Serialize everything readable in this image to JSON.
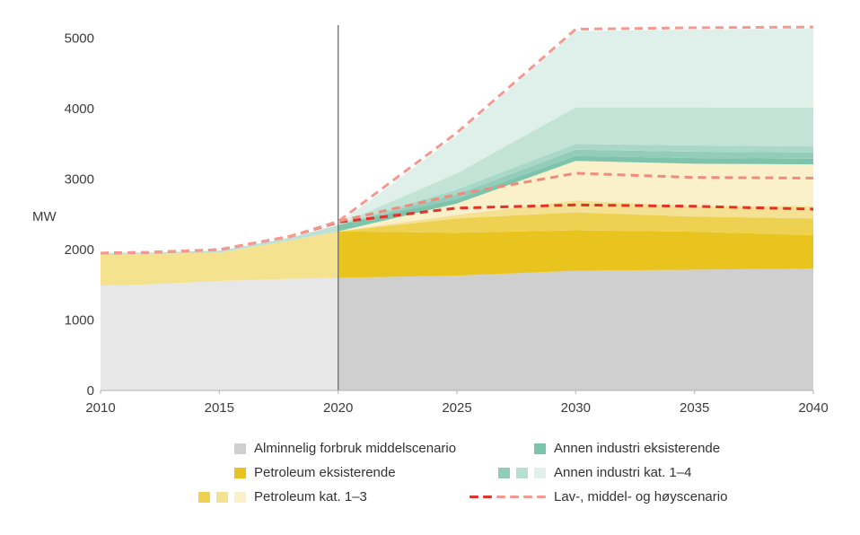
{
  "chart_data": {
    "type": "area",
    "title": "",
    "ylabel": "MW",
    "xlabel": "",
    "axis": {
      "xlim": [
        2010,
        2040
      ],
      "ylim": [
        0,
        5300
      ],
      "grid": false
    },
    "yticks": [
      0,
      1000,
      2000,
      3000,
      4000,
      5000
    ],
    "xticks": [
      2010,
      2015,
      2020,
      2025,
      2030,
      2035,
      2040
    ],
    "divider_year": 2020,
    "historical_overlay": {
      "from": 2010,
      "to": 2020,
      "white_opacity": 0.5
    },
    "x_knots": [
      2010,
      2012,
      2015,
      2018,
      2020,
      2025,
      2030,
      2035,
      2040
    ],
    "bands": [
      {
        "name": "alminnelig-forbruk",
        "label": "Alminnelig forbruk middelscenario",
        "color": "#cfcfcf",
        "top": [
          1490,
          1505,
          1555,
          1585,
          1600,
          1630,
          1700,
          1715,
          1730
        ]
      },
      {
        "name": "petroleum-eksisterende",
        "label": "Petroleum eksisterende",
        "color": "#e9c41f",
        "top": [
          1930,
          1940,
          1955,
          2130,
          2260,
          2240,
          2275,
          2255,
          2205
        ]
      },
      {
        "name": "petroleum-kat-1",
        "label": "Petroleum kat. 1",
        "color": "#efd152",
        "top": [
          1930,
          1940,
          1955,
          2130,
          2260,
          2445,
          2530,
          2470,
          2445
        ]
      },
      {
        "name": "petroleum-kat-2",
        "label": "Petroleum kat. 2",
        "color": "#f4e193",
        "top": [
          1930,
          1940,
          1955,
          2130,
          2260,
          2495,
          2700,
          2615,
          2620
        ]
      },
      {
        "name": "petroleum-kat-3",
        "label": "Petroleum kat. 3",
        "color": "#faf0c9",
        "top": [
          1930,
          1940,
          1955,
          2130,
          2260,
          2655,
          3260,
          3220,
          3210
        ]
      },
      {
        "name": "annen-industri-eksisterende",
        "label": "Annen industri eksisterende",
        "color": "#7ec3ab",
        "top": [
          1950,
          1960,
          1985,
          2170,
          2350,
          2720,
          3330,
          3300,
          3290
        ]
      },
      {
        "name": "annen-industri-kat-1",
        "label": "Annen industri kat. 1",
        "color": "#93ccb9",
        "top": [
          1950,
          1960,
          1985,
          2170,
          2350,
          2785,
          3420,
          3390,
          3380
        ]
      },
      {
        "name": "annen-industri-kat-2",
        "label": "Annen industri kat. 2",
        "color": "#aad8c8",
        "top": [
          1950,
          1960,
          1985,
          2170,
          2350,
          2855,
          3500,
          3480,
          3465
        ]
      },
      {
        "name": "annen-industri-kat-3",
        "label": "Annen industri kat. 3",
        "color": "#c4e3d7",
        "top": [
          1950,
          1960,
          1985,
          2170,
          2355,
          3085,
          4020,
          4020,
          4015
        ]
      },
      {
        "name": "annen-industri-kat-4",
        "label": "Annen industri kat. 4",
        "color": "#dfefe9",
        "top": [
          1950,
          1960,
          1985,
          2170,
          2360,
          3620,
          5100,
          5125,
          5140
        ]
      }
    ],
    "scenario_lines": [
      {
        "name": "lavscenario",
        "label": "Lavscenario",
        "color": "#e23128",
        "values": [
          1950,
          1960,
          2000,
          2190,
          2390,
          2590,
          2635,
          2615,
          2575
        ]
      },
      {
        "name": "middelscenario",
        "label": "Middelscenario",
        "color": "#ef8b7a",
        "values": [
          1950,
          1960,
          2000,
          2190,
          2400,
          2785,
          3085,
          3025,
          3015
        ]
      },
      {
        "name": "hoyscenario",
        "label": "Høyscenario",
        "color": "#f39a90",
        "values": [
          1950,
          1960,
          2000,
          2190,
          2400,
          3660,
          5130,
          5150,
          5160
        ]
      }
    ],
    "colors": {
      "divider_line": "#6e6e6e",
      "axis_line": "#b3b3b3",
      "tick_text": "#3c3c3c"
    }
  },
  "legend": {
    "columns": [
      {
        "rows": [
          {
            "label": "Alminnelig forbruk middelscenario",
            "swatches": [
              "#cfcfcf"
            ]
          },
          {
            "label": "Petroleum eksisterende",
            "swatches": [
              "#e9c41f"
            ]
          },
          {
            "label": "Petroleum kat. 1–3",
            "swatches": [
              "#efd152",
              "#f4e193",
              "#faf0c9"
            ]
          }
        ]
      },
      {
        "rows": [
          {
            "label": "Annen industri eksisterende",
            "swatches": [
              "#7ec3ab"
            ]
          },
          {
            "label": "Annen industri kat. 1–4",
            "swatches": [
              "#93ccb9",
              "#b9ddd0",
              "#e2f0eb"
            ]
          },
          {
            "label": "Lav-, middel- og høyscenario",
            "dashes": [
              "#e23128",
              "#e23128",
              "#f39a90",
              "#f39a90",
              "#f39a90",
              "#f39a90"
            ]
          }
        ]
      }
    ]
  }
}
